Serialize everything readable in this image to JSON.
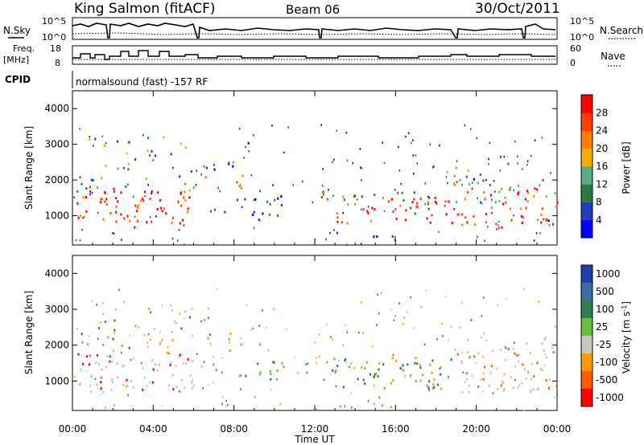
{
  "header": {
    "station": "King Salmon (fitACF)",
    "beam": "Beam 06",
    "date": "30/Oct/2011"
  },
  "top_panels": {
    "nsky_label": "N.Sky",
    "nsky_hi": "10^5",
    "nsky_lo": "10^0",
    "nsearch_label": "N.Search",
    "nsearch_hi": "10^5",
    "nsearch_lo": "10^0",
    "freq_label": "Freq.",
    "freq_unit": "[MHz]",
    "freq_hi": "18",
    "freq_lo": "8",
    "nave_label": "Nave",
    "nave_hi": "60",
    "nave_lo": "0",
    "cpid_label": "CPID",
    "cpid_value": "normalsound (fast) -157 RF"
  },
  "chart_data": [
    {
      "type": "heatmap",
      "title": "Power",
      "xlabel": "Time UT",
      "ylabel": "Slant Range [km]",
      "x_ticks": [
        "00:00",
        "04:00",
        "08:00",
        "12:00",
        "16:00",
        "20:00",
        "00:00"
      ],
      "y_ticks": [
        1000,
        2000,
        3000,
        4000
      ],
      "ylim": [
        180,
        4500
      ],
      "colorbar": {
        "label": "Power [dB]",
        "ticks": [
          4,
          8,
          12,
          16,
          20,
          24,
          28
        ],
        "colors": [
          "#0000ff",
          "#1f3fc0",
          "#2c7a3e",
          "#55b088",
          "#f0b000",
          "#ff8000",
          "#ff4000",
          "#ff0000"
        ]
      }
    },
    {
      "type": "heatmap",
      "title": "Velocity",
      "xlabel": "Time UT",
      "ylabel": "Slant Range [km]",
      "x_ticks": [
        "00:00",
        "04:00",
        "08:00",
        "12:00",
        "16:00",
        "20:00",
        "00:00"
      ],
      "y_ticks": [
        1000,
        2000,
        3000,
        4000
      ],
      "ylim": [
        180,
        4500
      ],
      "colorbar": {
        "label": "Velocity [m s",
        "label_sup": "-1",
        "label_close": "]",
        "ticks": [
          1000,
          500,
          100,
          25,
          -25,
          -100,
          -500,
          -1000
        ],
        "colors": [
          "#2040b0",
          "#3a6fa0",
          "#2f7f4f",
          "#66c03a",
          "#c8c8c0",
          "#ff9a00",
          "#ff5a00",
          "#ff0000"
        ]
      }
    }
  ]
}
